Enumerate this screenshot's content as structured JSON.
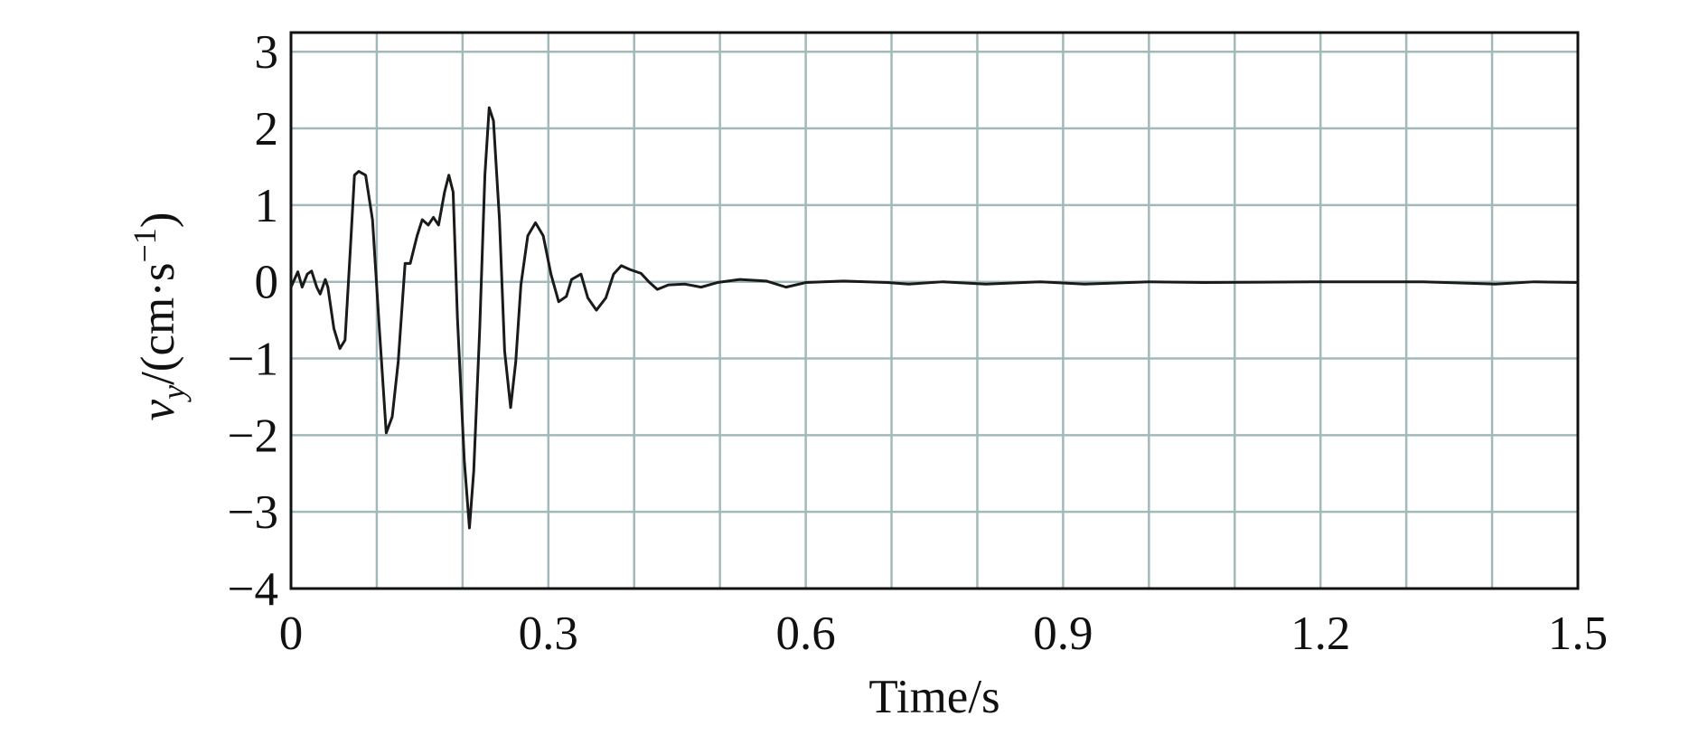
{
  "chart_data": {
    "type": "line",
    "xlabel": "Time/s",
    "ylabel": [
      "v",
      "y",
      "/(cm·s",
      "−1",
      ")"
    ],
    "x": [
      0,
      0.008,
      0.013,
      0.019,
      0.024,
      0.03,
      0.034,
      0.04,
      0.043,
      0.05,
      0.057,
      0.063,
      0.069,
      0.074,
      0.079,
      0.087,
      0.095,
      0.103,
      0.111,
      0.118,
      0.125,
      0.133,
      0.139,
      0.147,
      0.153,
      0.16,
      0.166,
      0.172,
      0.179,
      0.184,
      0.189,
      0.194,
      0.202,
      0.208,
      0.213,
      0.22,
      0.226,
      0.231,
      0.236,
      0.243,
      0.249,
      0.256,
      0.262,
      0.268,
      0.276,
      0.285,
      0.294,
      0.303,
      0.312,
      0.321,
      0.327,
      0.338,
      0.346,
      0.356,
      0.367,
      0.376,
      0.385,
      0.395,
      0.408,
      0.418,
      0.427,
      0.44,
      0.459,
      0.478,
      0.497,
      0.523,
      0.554,
      0.577,
      0.6,
      0.644,
      0.695,
      0.72,
      0.76,
      0.81,
      0.874,
      0.925,
      1.0,
      1.065,
      1.19,
      1.32,
      1.404,
      1.449,
      1.5
    ],
    "series": [
      {
        "color": "#1a1a1a",
        "values": [
          -0.07,
          0.13,
          -0.07,
          0.1,
          0.14,
          -0.07,
          -0.16,
          0.03,
          -0.07,
          -0.61,
          -0.87,
          -0.76,
          0.39,
          1.39,
          1.44,
          1.39,
          0.81,
          -0.61,
          -1.97,
          -1.76,
          -1.04,
          0.24,
          0.24,
          0.6,
          0.81,
          0.74,
          0.84,
          0.74,
          1.17,
          1.39,
          1.17,
          -0.47,
          -2.33,
          -3.21,
          -2.47,
          -0.61,
          1.39,
          2.27,
          2.1,
          0.81,
          -0.9,
          -1.64,
          -1.04,
          -0.04,
          0.6,
          0.77,
          0.6,
          0.1,
          -0.26,
          -0.19,
          0.03,
          0.1,
          -0.21,
          -0.37,
          -0.21,
          0.1,
          0.21,
          0.16,
          0.11,
          -0.01,
          -0.1,
          -0.04,
          -0.03,
          -0.07,
          -0.01,
          0.03,
          0.01,
          -0.07,
          -0.01,
          0.01,
          -0.01,
          -0.03,
          0,
          -0.03,
          0,
          -0.03,
          0,
          -0.01,
          0,
          0,
          -0.03,
          0,
          -0.01
        ]
      }
    ],
    "xlim": [
      0,
      1.5
    ],
    "ylim": [
      -4,
      3.25
    ],
    "xticks": [
      0,
      0.3,
      0.6,
      0.9,
      1.2,
      1.5
    ],
    "xgrid": [
      0.1,
      0.2,
      0.3,
      0.4,
      0.5,
      0.6,
      0.7,
      0.8,
      0.9,
      1.0,
      1.1,
      1.2,
      1.3,
      1.4
    ],
    "yticks": [
      {
        "value": -4,
        "label": "−4"
      },
      {
        "value": -3,
        "label": "−3"
      },
      {
        "value": -2,
        "label": "−2"
      },
      {
        "value": -1,
        "label": "−1"
      },
      0,
      1,
      2,
      3
    ],
    "grid": true,
    "grid_color": "#a3b8b8"
  }
}
